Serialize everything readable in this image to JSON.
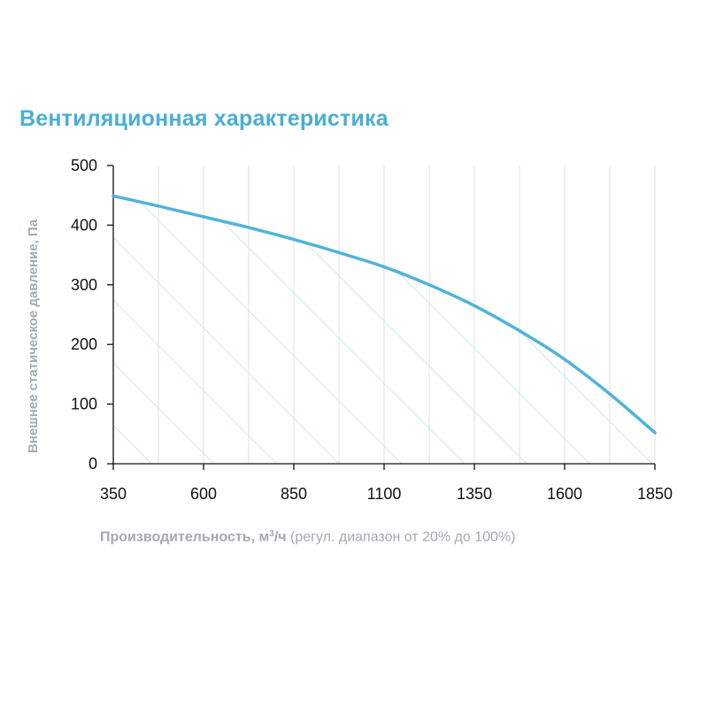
{
  "chart_data": {
    "type": "area",
    "title": "Вентиляционная характеристика",
    "xlabel": {
      "main": "Производительность, м",
      "superscript": "3",
      "unit_suffix": "/ч",
      "note": " (регул. диапазон от 20% до 100%)"
    },
    "ylabel": "Внешнее статическое давление, Па",
    "xlim": [
      350,
      1850
    ],
    "ylim": [
      0,
      500
    ],
    "x_ticks": [
      350,
      600,
      850,
      1100,
      1350,
      1600,
      1850
    ],
    "y_ticks": [
      0,
      100,
      200,
      300,
      400,
      500
    ],
    "x_grid_lines": [
      350,
      475,
      600,
      725,
      850,
      975,
      1100,
      1225,
      1350,
      1475,
      1600,
      1725,
      1850
    ],
    "grid": true,
    "fill_pattern": "diagonal-hatch",
    "series": [
      {
        "x": [
          350,
          475,
          600,
          725,
          850,
          975,
          1100,
          1225,
          1350,
          1475,
          1600,
          1725,
          1850
        ],
        "y": [
          449,
          432,
          414,
          396,
          376,
          354,
          330,
          300,
          265,
          223,
          175,
          117,
          52
        ]
      }
    ],
    "colors": {
      "line": "#4fb3d9",
      "hatch": "#cfe8f2",
      "grid": "#e0e0e0",
      "axis": "#111111",
      "title": "#4aaed6",
      "label": "#a3aab0"
    }
  }
}
